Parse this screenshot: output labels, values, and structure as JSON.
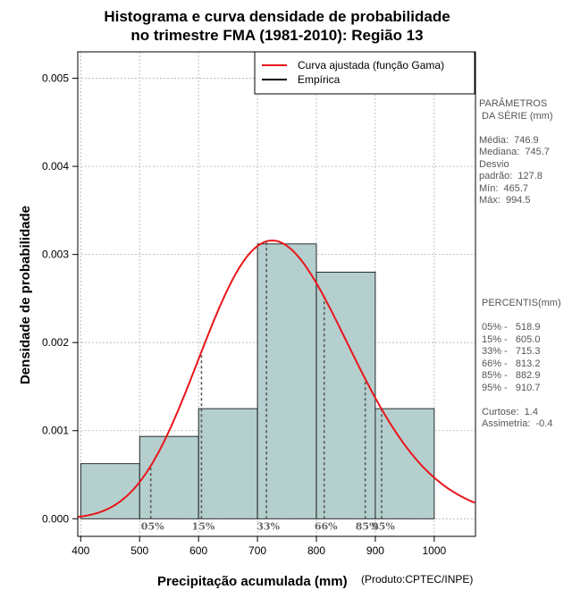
{
  "chart_data": {
    "type": "bar",
    "title": [
      "Histograma e curva densidade de probabilidade",
      "no trimestre FMA (1981-2010): Região 13"
    ],
    "xlabel": "Precipitação acumulada (mm)",
    "ylabel": "Densidade de probabilidade",
    "xlim": [
      395,
      1070
    ],
    "ylim": [
      -0.0002,
      0.0053
    ],
    "x_ticks": [
      400,
      500,
      600,
      700,
      800,
      900,
      1000
    ],
    "y_ticks": [
      0.0,
      0.001,
      0.002,
      0.003,
      0.004,
      0.005
    ],
    "y_tick_labels": [
      "0.000",
      "0.001",
      "0.002",
      "0.003",
      "0.004",
      "0.005"
    ],
    "grid": true,
    "histogram": {
      "bin_edges": [
        400,
        500,
        600,
        700,
        800,
        900,
        1000
      ],
      "densities": [
        0.000625,
        0.000935,
        0.00125,
        0.00312,
        0.0028,
        0.00125
      ],
      "fill": "#b5cece"
    },
    "gamma_fit": {
      "shape": 34.1,
      "scale": 21.9,
      "color": "#e8161a"
    },
    "percentile_markers": [
      {
        "label": "05%",
        "x": 518.9
      },
      {
        "label": "15%",
        "x": 605.0
      },
      {
        "label": "33%",
        "x": 715.3
      },
      {
        "label": "66%",
        "x": 813.2
      },
      {
        "label": "85%",
        "x": 882.9
      },
      {
        "label": "95%",
        "x": 910.7
      }
    ],
    "legend": {
      "position": "top-right",
      "entries": [
        {
          "label": "Curva ajustada (função Gama)",
          "color": "#e8161a"
        },
        {
          "label": "Empírica",
          "color": "#000000"
        }
      ]
    }
  },
  "labels": {
    "credit": "(Produto:CPTEC/INPE)"
  },
  "stats": {
    "heading1": "PARÂMETROS",
    "heading2": " DA SÉRIE (mm)",
    "media": "Média:  746.9",
    "mediana": "Mediana:  745.7",
    "desvio1": "Desvio",
    "desvio2": "padrão:  127.8",
    "min": "Mín:  465.7",
    "max": "Máx:  994.5"
  },
  "percentis": {
    "heading": "PERCENTIS(mm)",
    "p05": "05% -   518.9",
    "p15": "15% -   605.0",
    "p33": "33% -   715.3",
    "p66": "66% -   813.2",
    "p85": "85% -   882.9",
    "p95": "95% -   910.7",
    "curtose": "Curtose:  1.4",
    "assimetria": "Assimetria:  -0.4"
  }
}
